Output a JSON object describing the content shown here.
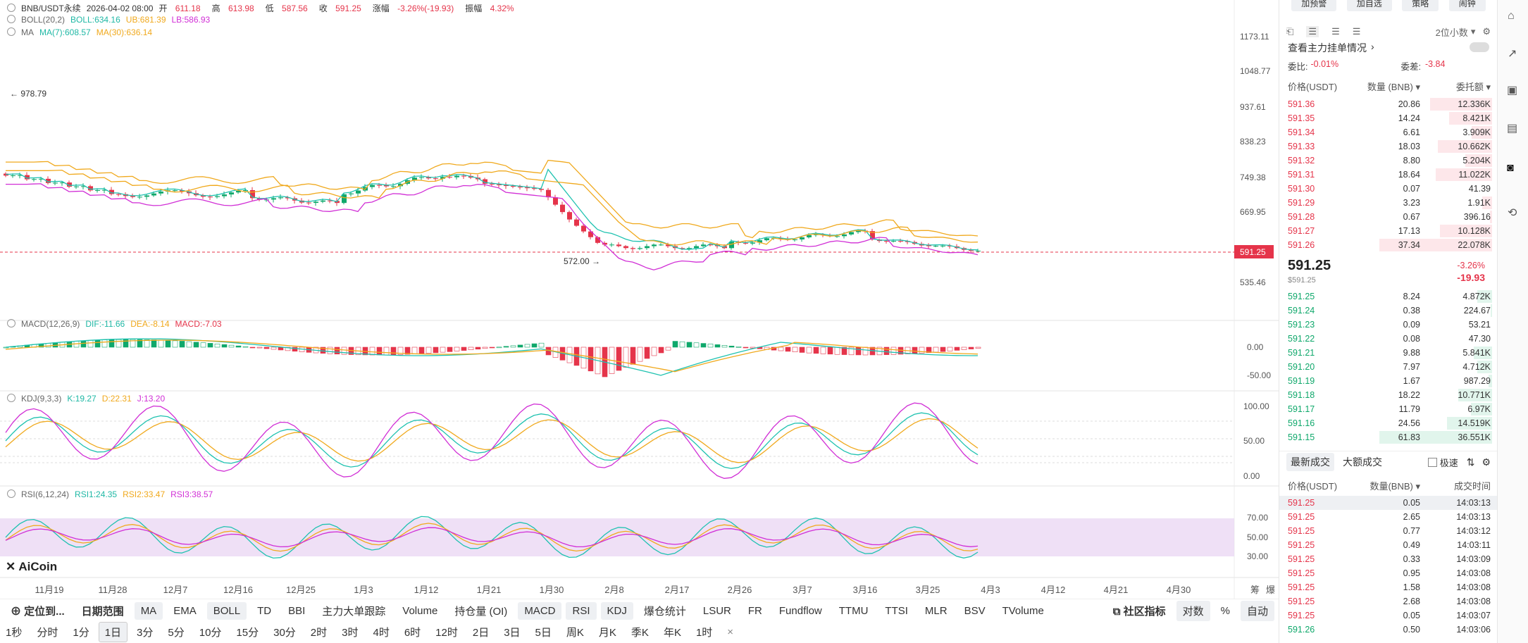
{
  "ohlc": {
    "pair": "BNB/USDT永续",
    "date": "2026-04-02 08:00",
    "open_label": "开",
    "open": "611.18",
    "high_label": "高",
    "high": "613.98",
    "low_label": "低",
    "low": "587.56",
    "close_label": "收",
    "close": "591.25",
    "change_label": "涨幅",
    "change": "-3.26%(-19.93)",
    "amp_label": "振幅",
    "amp": "4.32%"
  },
  "boll": {
    "name": "BOLL(20,2)",
    "mid": "BOLL:634.16",
    "ub": "UB:681.39",
    "lb": "LB:586.93"
  },
  "ma": {
    "name": "MA",
    "ma7": "MA(7):608.57",
    "ma30": "MA(30):636.14"
  },
  "macd": {
    "name": "MACD(12,26,9)",
    "dif": "DIF:-11.66",
    "dea": "DEA:-8.14",
    "macd": "MACD:-7.03"
  },
  "kdj": {
    "name": "KDJ(9,3,3)",
    "k": "K:19.27",
    "d": "D:22.31",
    "j": "J:13.20"
  },
  "rsi": {
    "name": "RSI(6,12,24)",
    "r1": "RSI1:24.35",
    "r2": "RSI2:33.47",
    "r3": "RSI3:38.57"
  },
  "price_axis": [
    "1173.11",
    "1048.77",
    "937.61",
    "838.23",
    "749.38",
    "669.95",
    "591.25",
    "535.46"
  ],
  "macd_axis": [
    "0.00",
    "-50.00"
  ],
  "kdj_axis": [
    "100.00",
    "50.00",
    "0.00"
  ],
  "rsi_axis": [
    "70.00",
    "50.00",
    "30.00"
  ],
  "high_mark": "978.79",
  "low_mark": "572.00",
  "last_price_tag": "591.25",
  "date_axis": [
    "11月19",
    "11月28",
    "12月7",
    "12月16",
    "12月25",
    "1月3",
    "1月12",
    "1月21",
    "1月30",
    "2月8",
    "2月17",
    "2月26",
    "3月7",
    "3月16",
    "3月25",
    "4月3",
    "4月12",
    "4月21",
    "4月30"
  ],
  "date_axis_right": [
    "筹",
    "爆"
  ],
  "logo": "AiCoin",
  "toolbar_indicators": {
    "locate": "定位到...",
    "range": "日期范围",
    "items": [
      "MA",
      "EMA",
      "BOLL",
      "TD",
      "BBI",
      "主力大单跟踪",
      "Volume",
      "持仓量 (OI)",
      "MACD",
      "RSI",
      "KDJ",
      "爆仓统计",
      "LSUR",
      "FR",
      "Fundflow",
      "TTMU",
      "TTSI",
      "MLR",
      "BSV",
      "TVolume"
    ],
    "active": [
      "MA",
      "BOLL",
      "MACD",
      "RSI",
      "KDJ"
    ],
    "community": "社区指标",
    "log": "对数",
    "pct": "%",
    "auto": "自动"
  },
  "toolbar_periods": {
    "items": [
      "1秒",
      "分时",
      "1分",
      "1日",
      "3分",
      "5分",
      "10分",
      "15分",
      "30分",
      "2时",
      "3时",
      "4时",
      "6时",
      "12时",
      "2日",
      "3日",
      "5日",
      "周K",
      "月K",
      "季K",
      "年K",
      "1时"
    ],
    "active": "1日"
  },
  "right_top_buttons": [
    "加预警",
    "加自选",
    "策略",
    "闹钟"
  ],
  "decimals": "2位小数",
  "main_orders": "查看主力挂单情况",
  "ratio_label": "委比:",
  "ratio": "-0.01%",
  "diff_label": "委差:",
  "diff": "-3.84",
  "book_headers": [
    "价格(USDT)",
    "数量 (BNB)",
    "委托额"
  ],
  "asks": [
    {
      "p": "591.36",
      "q": "20.86",
      "a": "12.336K",
      "d": 0.55
    },
    {
      "p": "591.35",
      "q": "14.24",
      "a": "8.421K",
      "d": 0.38
    },
    {
      "p": "591.34",
      "q": "6.61",
      "a": "3.909K",
      "d": 0.18
    },
    {
      "p": "591.33",
      "q": "18.03",
      "a": "10.662K",
      "d": 0.48
    },
    {
      "p": "591.32",
      "q": "8.80",
      "a": "5.204K",
      "d": 0.24
    },
    {
      "p": "591.31",
      "q": "18.64",
      "a": "11.022K",
      "d": 0.5
    },
    {
      "p": "591.30",
      "q": "0.07",
      "a": "41.39",
      "d": 0.0
    },
    {
      "p": "591.29",
      "q": "3.23",
      "a": "1.91K",
      "d": 0.09
    },
    {
      "p": "591.28",
      "q": "0.67",
      "a": "396.16",
      "d": 0.02
    },
    {
      "p": "591.27",
      "q": "17.13",
      "a": "10.128K",
      "d": 0.46
    },
    {
      "p": "591.26",
      "q": "37.34",
      "a": "22.078K",
      "d": 1.0
    }
  ],
  "mid_price": "591.25",
  "mid_sub": "$591.25",
  "mid_pct": "-3.26%",
  "mid_chg": "-19.93",
  "bids": [
    {
      "p": "591.25",
      "q": "8.24",
      "a": "4.872K",
      "d": 0.13
    },
    {
      "p": "591.24",
      "q": "0.38",
      "a": "224.67",
      "d": 0.01
    },
    {
      "p": "591.23",
      "q": "0.09",
      "a": "53.21",
      "d": 0.0
    },
    {
      "p": "591.22",
      "q": "0.08",
      "a": "47.30",
      "d": 0.0
    },
    {
      "p": "591.21",
      "q": "9.88",
      "a": "5.841K",
      "d": 0.16
    },
    {
      "p": "591.20",
      "q": "7.97",
      "a": "4.712K",
      "d": 0.13
    },
    {
      "p": "591.19",
      "q": "1.67",
      "a": "987.29",
      "d": 0.03
    },
    {
      "p": "591.18",
      "q": "18.22",
      "a": "10.771K",
      "d": 0.3
    },
    {
      "p": "591.17",
      "q": "11.79",
      "a": "6.97K",
      "d": 0.19
    },
    {
      "p": "591.16",
      "q": "24.56",
      "a": "14.519K",
      "d": 0.4
    },
    {
      "p": "591.15",
      "q": "61.83",
      "a": "36.551K",
      "d": 1.0
    }
  ],
  "trades_tab_active": "最新成交",
  "trades_tab2": "大额成交",
  "fast": "极速",
  "trade_headers": [
    "价格(USDT)",
    "数量(BNB)",
    "成交时间"
  ],
  "trades": [
    {
      "p": "591.25",
      "q": "0.05",
      "t": "14:03:13",
      "s": "r"
    },
    {
      "p": "591.25",
      "q": "2.65",
      "t": "14:03:13",
      "s": "r"
    },
    {
      "p": "591.25",
      "q": "0.77",
      "t": "14:03:12",
      "s": "r"
    },
    {
      "p": "591.25",
      "q": "0.49",
      "t": "14:03:11",
      "s": "r"
    },
    {
      "p": "591.25",
      "q": "0.33",
      "t": "14:03:09",
      "s": "r"
    },
    {
      "p": "591.25",
      "q": "0.95",
      "t": "14:03:08",
      "s": "r"
    },
    {
      "p": "591.25",
      "q": "1.58",
      "t": "14:03:08",
      "s": "r"
    },
    {
      "p": "591.25",
      "q": "2.68",
      "t": "14:03:08",
      "s": "r"
    },
    {
      "p": "591.25",
      "q": "0.05",
      "t": "14:03:07",
      "s": "r"
    },
    {
      "p": "591.26",
      "q": "0.50",
      "t": "14:03:06",
      "s": "g"
    }
  ],
  "colors": {
    "up": "#0fa86b",
    "down": "#e5344a",
    "boll_mid": "#d12fd6",
    "ma7": "#1fc2b0",
    "ma30": "#f0a91d",
    "rsi_band": "#e9d5f3"
  }
}
